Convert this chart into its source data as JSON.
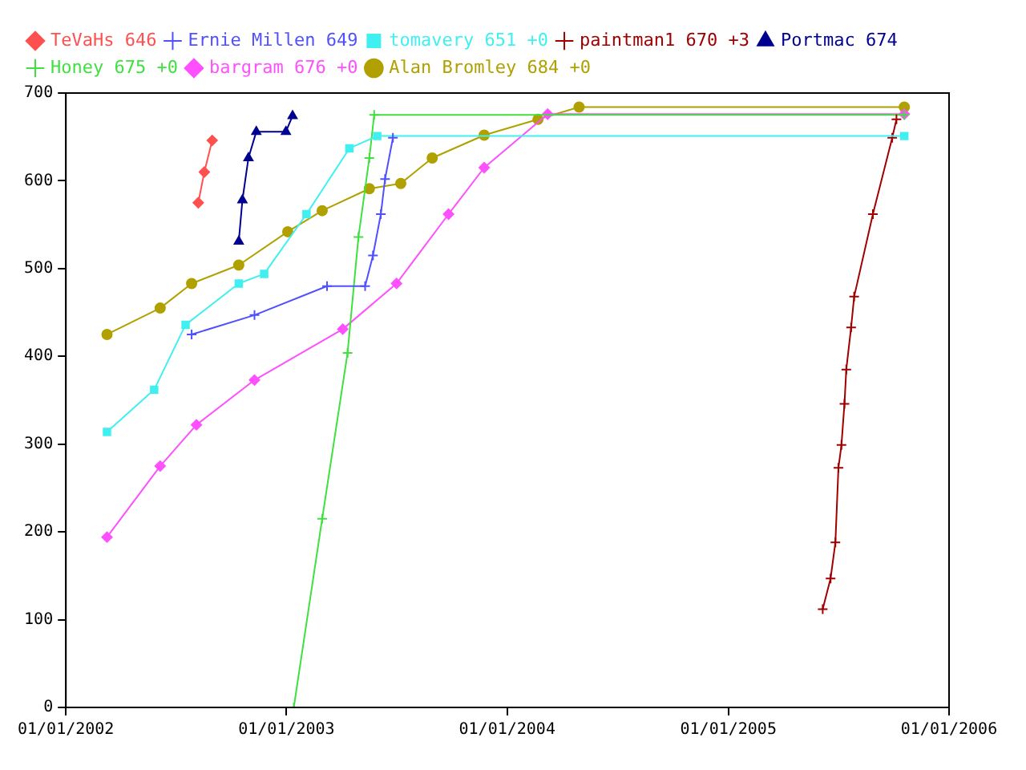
{
  "chart_data": {
    "type": "line",
    "xlim": [
      "2002-01-01",
      "2006-01-01"
    ],
    "xticks": [
      {
        "value": "2002-01-01",
        "label": "01/01/2002"
      },
      {
        "value": "2003-01-01",
        "label": "01/01/2003"
      },
      {
        "value": "2004-01-01",
        "label": "01/01/2004"
      },
      {
        "value": "2005-01-01",
        "label": "01/01/2005"
      },
      {
        "value": "2006-01-01",
        "label": "01/01/2006"
      }
    ],
    "ylim": [
      0,
      700
    ],
    "yticks": [
      0,
      100,
      200,
      300,
      400,
      500,
      600,
      700
    ],
    "legend": "top left",
    "grid": false,
    "series": [
      {
        "name": "TeVaHs 646",
        "color": "#ff5050",
        "marker": "diamond",
        "x": [
          "2002-08-08",
          "2002-08-18",
          "2002-08-31"
        ],
        "values": [
          575,
          610,
          646
        ]
      },
      {
        "name": "Ernie Millen 649",
        "color": "#5050ff",
        "marker": "cross",
        "x": [
          "2002-07-28",
          "2002-11-09",
          "2003-03-09",
          "2003-05-11",
          "2003-05-24",
          "2003-06-06",
          "2003-06-13",
          "2003-06-26"
        ],
        "values": [
          425,
          447,
          480,
          480,
          515,
          562,
          602,
          649
        ]
      },
      {
        "name": "tomavery 651 +0",
        "color": "#40f0f0",
        "marker": "square",
        "x": [
          "2002-03-10",
          "2002-05-27",
          "2002-07-18",
          "2002-10-14",
          "2002-11-25",
          "2003-02-03",
          "2003-04-15",
          "2003-05-31",
          "2005-10-19"
        ],
        "values": [
          314,
          362,
          436,
          483,
          494,
          562,
          637,
          651,
          651
        ]
      },
      {
        "name": "paintman1 670 +3",
        "color": "#a00000",
        "marker": "cross",
        "x": [
          "2005-06-06",
          "2005-06-19",
          "2005-06-27",
          "2005-07-02",
          "2005-07-07",
          "2005-07-12",
          "2005-07-15",
          "2005-07-23",
          "2005-07-28",
          "2005-08-28",
          "2005-09-29",
          "2005-10-06"
        ],
        "values": [
          112,
          147,
          188,
          273,
          299,
          346,
          385,
          433,
          468,
          562,
          649,
          670
        ]
      },
      {
        "name": "Portmac 674",
        "color": "#000090",
        "marker": "triangle",
        "x": [
          "2002-10-14",
          "2002-10-20",
          "2002-10-30",
          "2002-11-12",
          "2002-12-31",
          "2003-01-11"
        ],
        "values": [
          531,
          578,
          626,
          656,
          656,
          674
        ]
      },
      {
        "name": "Honey 675 +0",
        "color": "#40e040",
        "marker": "cross",
        "x": [
          "2003-01-13",
          "2003-03-01",
          "2003-04-12",
          "2003-04-30",
          "2003-05-18",
          "2003-05-26",
          "2005-10-19"
        ],
        "values": [
          0,
          215,
          404,
          536,
          626,
          675,
          675
        ]
      },
      {
        "name": "bargram 676 +0",
        "color": "#ff50ff",
        "marker": "diamond",
        "x": [
          "2002-03-10",
          "2002-06-06",
          "2002-08-05",
          "2002-11-09",
          "2003-04-04",
          "2003-07-02",
          "2003-09-26",
          "2003-11-24",
          "2004-03-08",
          "2005-10-19"
        ],
        "values": [
          194,
          275,
          322,
          373,
          431,
          483,
          562,
          615,
          676,
          676
        ]
      },
      {
        "name": "Alan Bromley 684 +0",
        "color": "#b0a000",
        "marker": "circle",
        "x": [
          "2002-03-10",
          "2002-06-06",
          "2002-07-28",
          "2002-10-14",
          "2003-01-03",
          "2003-03-01",
          "2003-05-18",
          "2003-07-09",
          "2003-08-30",
          "2003-11-24",
          "2004-02-21",
          "2004-04-29",
          "2005-10-19"
        ],
        "values": [
          425,
          455,
          483,
          504,
          542,
          566,
          591,
          597,
          626,
          652,
          670,
          684,
          684
        ]
      }
    ]
  }
}
